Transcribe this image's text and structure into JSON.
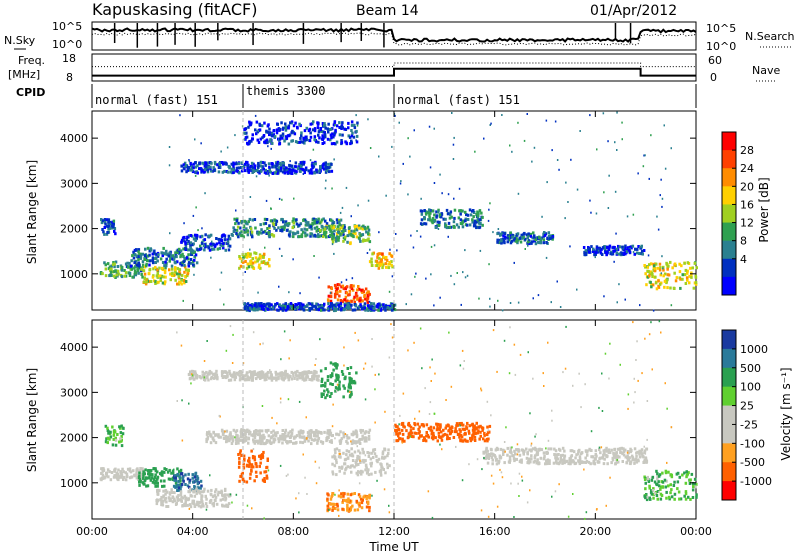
{
  "header": {
    "station": "Kapuskasing (fitACF)",
    "beam": "Beam 14",
    "date": "01/Apr/2012"
  },
  "summary_panels": {
    "nsky_label": "N.Sky",
    "nsky_ticks": [
      "10^5",
      "10^0"
    ],
    "nsearch_label": "N.Search",
    "nsearch_ticks": [
      "10^5",
      "10^0"
    ],
    "freq_label_1": "Freq.",
    "freq_label_2": "[MHz]",
    "freq_ticks": [
      "18",
      "8"
    ],
    "nave_label": "Nave",
    "nave_ticks": [
      "60",
      "0"
    ],
    "cpid_label": "CPID",
    "cpid_segments": [
      {
        "label": "normal (fast) 151",
        "start": 0,
        "end": 6
      },
      {
        "label": "themis 3300",
        "start": 6,
        "end": 12
      },
      {
        "label": "normal (fast) 151",
        "start": 12,
        "end": 24
      }
    ]
  },
  "x_axis": {
    "label": "Time UT",
    "ticks": [
      "00:00",
      "04:00",
      "08:00",
      "12:00",
      "16:00",
      "20:00",
      "00:00"
    ],
    "tick_hours": [
      0,
      4,
      8,
      12,
      16,
      20,
      24
    ]
  },
  "y_axis": {
    "label": "Slant Range [km]",
    "ticks": [
      "1000",
      "2000",
      "3000",
      "4000"
    ],
    "tick_values": [
      1000,
      2000,
      3000,
      4000
    ],
    "range": [
      200,
      4600
    ]
  },
  "colorbars": {
    "power": {
      "label": "Power [dB]",
      "ticks": [
        "28",
        "24",
        "20",
        "16",
        "12",
        "8",
        "4"
      ],
      "colors": [
        "#ff0000",
        "#ff4000",
        "#ff8c00",
        "#ffd000",
        "#a0d020",
        "#2fa050",
        "#2a8090",
        "#0030c0",
        "#0000ff"
      ]
    },
    "velocity": {
      "label": "Velocity [m s⁻¹]",
      "ticks": [
        "1000",
        "500",
        "100",
        "25",
        "-25",
        "-100",
        "-500",
        "-1000"
      ],
      "colors": [
        "#1a3aa0",
        "#2a7a9a",
        "#2aa050",
        "#60d030",
        "#c8c8c0",
        "#c8c8c0",
        "#ffa020",
        "#ff6000",
        "#ff0000"
      ]
    }
  },
  "chart_data": [
    {
      "type": "heatmap",
      "title": "Power",
      "xlabel": "Time UT",
      "ylabel": "Slant Range [km]",
      "xlim": [
        0,
        24
      ],
      "ylim": [
        200,
        4600
      ],
      "value_label": "Power [dB]",
      "bands": [
        {
          "t0": 0.3,
          "t1": 2.0,
          "r0": 950,
          "r1": 1300,
          "level": 12
        },
        {
          "t0": 2.0,
          "t1": 3.8,
          "r0": 800,
          "r1": 1200,
          "level": 18
        },
        {
          "t0": 1.5,
          "t1": 4.2,
          "r0": 1200,
          "r1": 1600,
          "level": 8
        },
        {
          "t0": 3.5,
          "t1": 5.5,
          "r0": 1550,
          "r1": 1900,
          "level": 6
        },
        {
          "t0": 5.8,
          "t1": 7.0,
          "r0": 1150,
          "r1": 1500,
          "level": 18
        },
        {
          "t0": 5.5,
          "t1": 10.0,
          "r0": 1850,
          "r1": 2250,
          "level": 10
        },
        {
          "t0": 9.0,
          "t1": 11.0,
          "r0": 1700,
          "r1": 2100,
          "level": 14
        },
        {
          "t0": 3.5,
          "t1": 9.5,
          "r0": 3250,
          "r1": 3500,
          "level": 5
        },
        {
          "t0": 6.0,
          "t1": 10.5,
          "r0": 3900,
          "r1": 4400,
          "level": 4
        },
        {
          "t0": 9.3,
          "t1": 11.0,
          "r0": 400,
          "r1": 800,
          "level": 26
        },
        {
          "t0": 6.0,
          "t1": 12.0,
          "r0": 220,
          "r1": 380,
          "level": 6
        },
        {
          "t0": 11.0,
          "t1": 11.9,
          "r0": 1150,
          "r1": 1500,
          "level": 20
        },
        {
          "t0": 13.0,
          "t1": 15.5,
          "r0": 2050,
          "r1": 2450,
          "level": 9
        },
        {
          "t0": 16.0,
          "t1": 18.3,
          "r0": 1700,
          "r1": 1950,
          "level": 8
        },
        {
          "t0": 19.5,
          "t1": 21.9,
          "r0": 1450,
          "r1": 1650,
          "level": 5
        },
        {
          "t0": 21.9,
          "t1": 24.0,
          "r0": 700,
          "r1": 1300,
          "level": 18
        },
        {
          "t0": 0.3,
          "t1": 1.0,
          "r0": 1900,
          "r1": 2250,
          "level": 6
        }
      ]
    },
    {
      "type": "heatmap",
      "title": "Velocity",
      "xlabel": "Time UT",
      "ylabel": "Slant Range [km]",
      "xlim": [
        0,
        24
      ],
      "ylim": [
        200,
        4600
      ],
      "value_label": "Velocity [m s-1]",
      "bands": [
        {
          "t0": 0.3,
          "t1": 2.0,
          "r0": 1100,
          "r1": 1350,
          "level": 0
        },
        {
          "t0": 1.8,
          "t1": 3.5,
          "r0": 950,
          "r1": 1350,
          "level": 150
        },
        {
          "t0": 3.2,
          "t1": 4.3,
          "r0": 850,
          "r1": 1250,
          "level": 600
        },
        {
          "t0": 2.5,
          "t1": 5.5,
          "r0": 500,
          "r1": 900,
          "level": 0
        },
        {
          "t0": 0.5,
          "t1": 1.2,
          "r0": 1850,
          "r1": 2300,
          "level": 60
        },
        {
          "t0": 5.7,
          "t1": 7.0,
          "r0": 1050,
          "r1": 1750,
          "level": -300
        },
        {
          "t0": 4.5,
          "t1": 11.0,
          "r0": 1900,
          "r1": 2200,
          "level": 0
        },
        {
          "t0": 9.5,
          "t1": 11.8,
          "r0": 1200,
          "r1": 1800,
          "level": 0
        },
        {
          "t0": 3.8,
          "t1": 9.0,
          "r0": 3300,
          "r1": 3500,
          "level": 0
        },
        {
          "t0": 9.3,
          "t1": 11.0,
          "r0": 400,
          "r1": 800,
          "level": -80
        },
        {
          "t0": 12.0,
          "t1": 15.8,
          "r0": 1950,
          "r1": 2350,
          "level": -300
        },
        {
          "t0": 15.5,
          "t1": 22.0,
          "r0": 1450,
          "r1": 1800,
          "level": 0
        },
        {
          "t0": 21.9,
          "t1": 24.0,
          "r0": 650,
          "r1": 1300,
          "level": 60
        },
        {
          "t0": 9.0,
          "t1": 10.5,
          "r0": 2900,
          "r1": 3700,
          "level": 150
        }
      ]
    },
    {
      "type": "line",
      "title": "Freq",
      "series": [
        {
          "name": "Freq.",
          "x": [
            0,
            12,
            12,
            21.8,
            21.8,
            24
          ],
          "y": [
            10,
            10,
            12.5,
            12.5,
            10,
            10
          ]
        },
        {
          "name": "Nave",
          "x": [
            0,
            12,
            12,
            21.8,
            21.8,
            24
          ],
          "y": [
            32,
            32,
            40,
            40,
            32,
            32
          ]
        }
      ],
      "xlim": [
        0,
        24
      ]
    }
  ]
}
